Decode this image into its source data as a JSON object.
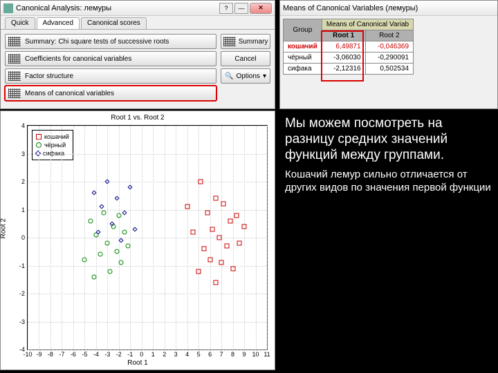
{
  "dialog1": {
    "title": "Canonical Analysis: лемуры",
    "tabs": {
      "quick": "Quick",
      "advanced": "Advanced",
      "scores": "Canonical scores"
    },
    "buttons": {
      "summary_chi": "Summary: Chi square tests of successive roots",
      "coeffs": "Coefficients for canonical variables",
      "factor": "Factor structure",
      "means": "Means of canonical variables"
    },
    "right": {
      "summary": "Summary",
      "cancel": "Cancel",
      "options": "Options"
    }
  },
  "dialog2": {
    "title": "Means of Canonical Variables (лемуры)",
    "header_group": "Group",
    "header_main": "Means of Canonical Variab",
    "cols": [
      "Root 1",
      "Root 2"
    ],
    "rows": [
      {
        "label": "кошачий",
        "r1": "6,49871",
        "r2": "-0,046369"
      },
      {
        "label": "чёрный",
        "r1": "-3,06030",
        "r2": "-0,290091"
      },
      {
        "label": "сифака",
        "r1": "-2,12316",
        "r2": "0,502534"
      }
    ],
    "highlight_col": 0
  },
  "chart": {
    "title": "Root 1 vs. Root 2",
    "xlabel": "Root 1",
    "ylabel": "Root 2",
    "xlim": [
      -10,
      11
    ],
    "xstep": 1,
    "ylim": [
      -4,
      4
    ],
    "ystep": 1,
    "legend": [
      "кошачий",
      "чёрный",
      "сифака"
    ],
    "colors": {
      "кошачий": "#c00000",
      "чёрный": "#008000",
      "сифака": "#000080"
    },
    "series": {
      "кошачий": [
        [
          4.0,
          1.1
        ],
        [
          4.5,
          0.2
        ],
        [
          5.0,
          -1.2
        ],
        [
          5.2,
          2.0
        ],
        [
          5.5,
          -0.4
        ],
        [
          5.8,
          0.9
        ],
        [
          6.0,
          -0.8
        ],
        [
          6.2,
          0.3
        ],
        [
          6.5,
          -1.6
        ],
        [
          6.5,
          1.4
        ],
        [
          6.8,
          0.0
        ],
        [
          7.0,
          -0.9
        ],
        [
          7.2,
          1.2
        ],
        [
          7.5,
          -0.3
        ],
        [
          7.8,
          0.6
        ],
        [
          8.0,
          -1.1
        ],
        [
          8.3,
          0.8
        ],
        [
          8.6,
          -0.2
        ],
        [
          9.0,
          0.4
        ]
      ],
      "чёрный": [
        [
          -5.0,
          -0.8
        ],
        [
          -4.5,
          0.6
        ],
        [
          -4.2,
          -1.4
        ],
        [
          -4.0,
          0.1
        ],
        [
          -3.6,
          -0.6
        ],
        [
          -3.3,
          0.9
        ],
        [
          -3.0,
          -0.2
        ],
        [
          -2.8,
          -1.2
        ],
        [
          -2.5,
          0.4
        ],
        [
          -2.2,
          -0.5
        ],
        [
          -2.0,
          0.8
        ],
        [
          -1.8,
          -0.9
        ],
        [
          -1.5,
          0.2
        ],
        [
          -1.2,
          -0.3
        ]
      ],
      "сифака": [
        [
          -4.2,
          1.6
        ],
        [
          -3.8,
          0.2
        ],
        [
          -3.5,
          1.1
        ],
        [
          -3.0,
          2.0
        ],
        [
          -2.6,
          0.5
        ],
        [
          -2.2,
          1.4
        ],
        [
          -1.8,
          -0.1
        ],
        [
          -1.5,
          0.9
        ],
        [
          -1.0,
          1.8
        ],
        [
          -0.6,
          0.3
        ]
      ]
    }
  },
  "text": {
    "p1": "Мы можем посмотреть на разницу средних значений функций между группами.",
    "p2": "Кошачий лемур сильно отличается от других видов по значения первой функции"
  }
}
